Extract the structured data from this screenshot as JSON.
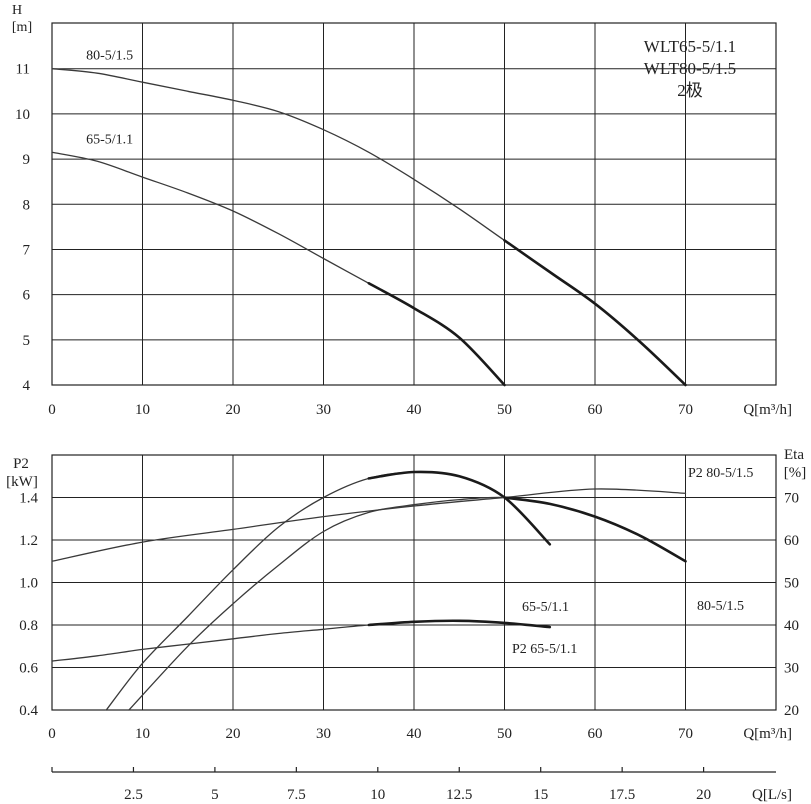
{
  "chart_data": [
    {
      "type": "line",
      "xlabel": "Q[m³/h]",
      "ylabel": "H",
      "yunit": "[m]",
      "xlim": [
        0,
        70
      ],
      "ylim": [
        4,
        12
      ],
      "xticks": [
        "0",
        "10",
        "20",
        "30",
        "40",
        "50",
        "60",
        "70"
      ],
      "yticks": [
        "4",
        "5",
        "6",
        "7",
        "8",
        "9",
        "10",
        "11"
      ],
      "grid": true,
      "info_box": [
        "WLT65-5/1.1",
        "WLT80-5/1.5",
        "2极"
      ],
      "series": [
        {
          "name": "80-5/1.5",
          "x": [
            0,
            5,
            10,
            15,
            20,
            25,
            30,
            35,
            40,
            45,
            50,
            55,
            60,
            65,
            70
          ],
          "y": [
            11.0,
            10.9,
            10.7,
            10.5,
            10.3,
            10.05,
            9.65,
            9.15,
            8.55,
            7.9,
            7.2,
            6.5,
            5.8,
            4.95,
            4.0
          ],
          "label_at_x": 2
        },
        {
          "name": "65-5/1.1",
          "x": [
            0,
            5,
            10,
            15,
            20,
            25,
            30,
            35,
            40,
            45,
            50
          ],
          "y": [
            9.15,
            8.95,
            8.6,
            8.25,
            7.85,
            7.35,
            6.8,
            6.25,
            5.7,
            5.05,
            4.0
          ],
          "label_at_x": 2
        }
      ]
    },
    {
      "type": "line",
      "xlabel": "Q[m³/h]",
      "ylabel": "P2",
      "yunit": "[kW]",
      "ylabel_right": "Eta",
      "yunit_right": "[%]",
      "xlim": [
        0,
        70
      ],
      "ylim": [
        0.4,
        1.6
      ],
      "ylim_right": [
        20,
        80
      ],
      "xticks": [
        "0",
        "10",
        "20",
        "30",
        "40",
        "50",
        "60",
        "70"
      ],
      "yticks": [
        "0.4",
        "0.6",
        "0.8",
        "1.0",
        "1.2",
        "1.4"
      ],
      "yticks_right": [
        "20",
        "30",
        "40",
        "50",
        "60",
        "70"
      ],
      "grid": true,
      "secondary_axis": {
        "label": "Q[L/s]",
        "ticks": [
          "2.5",
          "5",
          "7.5",
          "10",
          "12.5",
          "15",
          "17.5",
          "20"
        ]
      },
      "series": [
        {
          "name": "P2 80-5/1.5",
          "axis": "left",
          "x": [
            0,
            10,
            20,
            30,
            40,
            50,
            60,
            70
          ],
          "y": [
            1.1,
            1.19,
            1.25,
            1.31,
            1.36,
            1.4,
            1.44,
            1.42
          ]
        },
        {
          "name": "P2 65-5/1.1",
          "axis": "left",
          "x": [
            0,
            5,
            10,
            15,
            20,
            25,
            30,
            35,
            40,
            45,
            50,
            55
          ],
          "y": [
            0.63,
            0.655,
            0.685,
            0.71,
            0.735,
            0.76,
            0.78,
            0.8,
            0.815,
            0.82,
            0.81,
            0.79
          ]
        },
        {
          "name": "65-5/1.1",
          "axis": "right",
          "x": [
            6,
            10,
            15,
            20,
            25,
            30,
            35,
            40,
            45,
            50,
            55
          ],
          "y": [
            20,
            31,
            42,
            53,
            63,
            70,
            74.5,
            76,
            75,
            70,
            59
          ]
        },
        {
          "name": "80-5/1.5",
          "axis": "right",
          "x": [
            8.5,
            15,
            20,
            25,
            30,
            35,
            40,
            45,
            50,
            55,
            60,
            65,
            70
          ],
          "y": [
            20,
            35,
            45,
            54,
            62,
            66.5,
            68.3,
            69.5,
            70,
            68.5,
            65.5,
            61,
            55
          ]
        }
      ]
    }
  ]
}
